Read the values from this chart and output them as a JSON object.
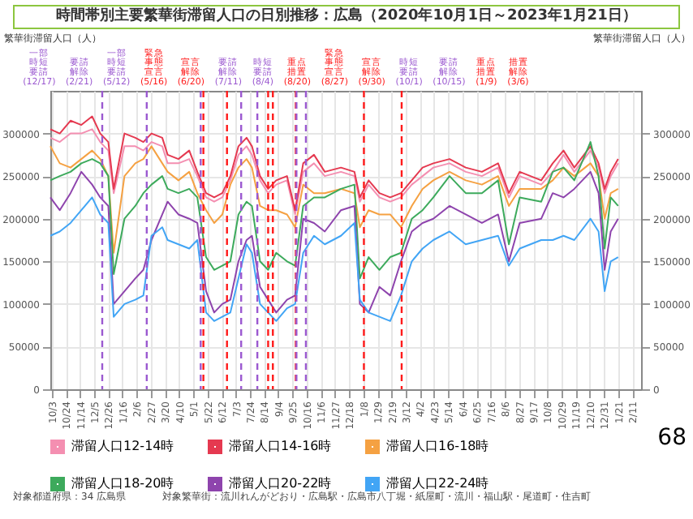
{
  "chart_data": {
    "type": "line",
    "title": "時間帯別主要繁華街滞留人口の日別推移：広島（2020年10月1日～2023年1月21日）",
    "ylabel": "繁華街滞留人口（人）",
    "y2label": "繁華街滞留人口（人）",
    "x": [
      "2020-10-01",
      "2020-10-15",
      "2020-10-31",
      "2020-11-16",
      "2020-12-02",
      "2020-12-14",
      "2020-12-26",
      "2021-01-03",
      "2021-01-19",
      "2021-02-04",
      "2021-02-16",
      "2021-02-28",
      "2021-03-16",
      "2021-03-24",
      "2021-04-09",
      "2021-04-25",
      "2021-05-07",
      "2021-05-20",
      "2021-06-01",
      "2021-06-13",
      "2021-06-25",
      "2021-07-07",
      "2021-07-19",
      "2021-07-27",
      "2021-08-08",
      "2021-08-20",
      "2021-09-01",
      "2021-09-17",
      "2021-09-29",
      "2021-10-11",
      "2021-10-27",
      "2021-11-12",
      "2021-12-06",
      "2021-12-26",
      "2022-01-03",
      "2022-01-16",
      "2022-02-01",
      "2022-02-17",
      "2022-03-05",
      "2022-03-21",
      "2022-04-06",
      "2022-04-22",
      "2022-05-16",
      "2022-06-09",
      "2022-07-03",
      "2022-07-27",
      "2022-08-12",
      "2022-08-28",
      "2022-09-29",
      "2022-10-16",
      "2022-11-01",
      "2022-11-17",
      "2022-12-11",
      "2022-12-23",
      "2023-01-01",
      "2023-01-10",
      "2023-01-21"
    ],
    "series": [
      {
        "name": "滞留人口12-14時",
        "color": "#f48fb1",
        "values": [
          295000,
          290000,
          300000,
          300000,
          305000,
          290000,
          280000,
          230000,
          285000,
          285000,
          280000,
          290000,
          285000,
          265000,
          265000,
          270000,
          250000,
          225000,
          220000,
          225000,
          245000,
          275000,
          285000,
          275000,
          245000,
          230000,
          240000,
          245000,
          205000,
          255000,
          265000,
          250000,
          255000,
          250000,
          220000,
          240000,
          225000,
          220000,
          225000,
          240000,
          250000,
          260000,
          265000,
          255000,
          250000,
          260000,
          225000,
          250000,
          240000,
          255000,
          275000,
          255000,
          280000,
          260000,
          230000,
          250000,
          265000
        ]
      },
      {
        "name": "滞留人口14-16時",
        "color": "#e53950",
        "values": [
          305000,
          300000,
          315000,
          310000,
          320000,
          300000,
          290000,
          235000,
          300000,
          295000,
          290000,
          300000,
          295000,
          275000,
          270000,
          280000,
          255000,
          230000,
          225000,
          230000,
          250000,
          285000,
          295000,
          285000,
          250000,
          235000,
          245000,
          250000,
          210000,
          265000,
          275000,
          255000,
          260000,
          255000,
          225000,
          245000,
          230000,
          225000,
          230000,
          245000,
          260000,
          265000,
          270000,
          260000,
          255000,
          265000,
          230000,
          255000,
          245000,
          265000,
          280000,
          260000,
          285000,
          265000,
          235000,
          255000,
          270000
        ]
      },
      {
        "name": "滞留人口16-18時",
        "color": "#f5a142",
        "values": [
          285000,
          265000,
          260000,
          270000,
          280000,
          270000,
          250000,
          160000,
          250000,
          265000,
          270000,
          285000,
          265000,
          255000,
          245000,
          255000,
          230000,
          210000,
          195000,
          205000,
          240000,
          260000,
          270000,
          260000,
          215000,
          210000,
          210000,
          205000,
          190000,
          240000,
          230000,
          230000,
          235000,
          230000,
          190000,
          210000,
          205000,
          205000,
          190000,
          215000,
          235000,
          245000,
          255000,
          245000,
          240000,
          250000,
          215000,
          235000,
          235000,
          245000,
          260000,
          250000,
          265000,
          250000,
          200000,
          230000,
          235000
        ]
      },
      {
        "name": "滞留人口18-20時",
        "color": "#3daa5c",
        "values": [
          245000,
          250000,
          255000,
          265000,
          270000,
          265000,
          250000,
          135000,
          200000,
          215000,
          230000,
          240000,
          250000,
          235000,
          230000,
          235000,
          225000,
          155000,
          140000,
          145000,
          150000,
          205000,
          220000,
          215000,
          150000,
          140000,
          160000,
          150000,
          145000,
          215000,
          225000,
          225000,
          235000,
          240000,
          130000,
          155000,
          140000,
          155000,
          160000,
          200000,
          210000,
          225000,
          250000,
          230000,
          230000,
          245000,
          170000,
          225000,
          220000,
          255000,
          260000,
          245000,
          290000,
          250000,
          165000,
          225000,
          215000
        ]
      },
      {
        "name": "滞留人口20-22時",
        "color": "#8e44ad",
        "values": [
          225000,
          210000,
          230000,
          255000,
          240000,
          225000,
          215000,
          100000,
          115000,
          130000,
          140000,
          175000,
          205000,
          220000,
          205000,
          200000,
          195000,
          115000,
          90000,
          100000,
          105000,
          150000,
          175000,
          180000,
          120000,
          105000,
          90000,
          105000,
          110000,
          200000,
          195000,
          185000,
          210000,
          215000,
          100000,
          90000,
          120000,
          110000,
          150000,
          185000,
          195000,
          200000,
          215000,
          205000,
          195000,
          205000,
          150000,
          195000,
          200000,
          230000,
          225000,
          235000,
          255000,
          230000,
          140000,
          185000,
          200000
        ]
      },
      {
        "name": "滞留人口22-24時",
        "color": "#42a5f5",
        "values": [
          180000,
          185000,
          195000,
          210000,
          225000,
          205000,
          195000,
          85000,
          100000,
          105000,
          110000,
          180000,
          190000,
          175000,
          170000,
          165000,
          175000,
          90000,
          80000,
          85000,
          90000,
          130000,
          170000,
          160000,
          100000,
          90000,
          80000,
          95000,
          100000,
          160000,
          180000,
          170000,
          180000,
          195000,
          105000,
          90000,
          85000,
          80000,
          110000,
          150000,
          165000,
          175000,
          185000,
          170000,
          175000,
          180000,
          145000,
          165000,
          175000,
          175000,
          180000,
          175000,
          200000,
          185000,
          115000,
          150000,
          155000
        ]
      }
    ],
    "xlim": [
      "2020-10-01",
      "2023-02-24"
    ],
    "xticks": [
      {
        "value": "2020-10-03",
        "label": "10/3"
      },
      {
        "value": "2020-10-24",
        "label": "10/24"
      },
      {
        "value": "2020-11-14",
        "label": "11/14"
      },
      {
        "value": "2020-12-05",
        "label": "12/5"
      },
      {
        "value": "2020-12-26",
        "label": "12/26"
      },
      {
        "value": "2021-01-16",
        "label": "1/16"
      },
      {
        "value": "2021-02-06",
        "label": "2/6"
      },
      {
        "value": "2021-02-27",
        "label": "2/27"
      },
      {
        "value": "2021-03-20",
        "label": "3/20"
      },
      {
        "value": "2021-04-10",
        "label": "4/10"
      },
      {
        "value": "2021-05-01",
        "label": "5/1"
      },
      {
        "value": "2021-05-22",
        "label": "5/22"
      },
      {
        "value": "2021-06-12",
        "label": "6/12"
      },
      {
        "value": "2021-07-03",
        "label": "7/3"
      },
      {
        "value": "2021-07-24",
        "label": "7/24"
      },
      {
        "value": "2021-08-14",
        "label": "8/14"
      },
      {
        "value": "2021-09-04",
        "label": "9/4"
      },
      {
        "value": "2021-09-25",
        "label": "9/25"
      },
      {
        "value": "2021-10-16",
        "label": "10/16"
      },
      {
        "value": "2021-11-06",
        "label": "11/6"
      },
      {
        "value": "2021-11-27",
        "label": "11/27"
      },
      {
        "value": "2021-12-18",
        "label": "12/18"
      },
      {
        "value": "2022-01-08",
        "label": "1/8"
      },
      {
        "value": "2022-01-29",
        "label": "1/29"
      },
      {
        "value": "2022-02-19",
        "label": "2/19"
      },
      {
        "value": "2022-03-12",
        "label": "3/12"
      },
      {
        "value": "2022-04-02",
        "label": "4/2"
      },
      {
        "value": "2022-04-23",
        "label": "4/23"
      },
      {
        "value": "2022-05-14",
        "label": "5/14"
      },
      {
        "value": "2022-06-04",
        "label": "6/4"
      },
      {
        "value": "2022-06-25",
        "label": "6/25"
      },
      {
        "value": "2022-07-16",
        "label": "7/16"
      },
      {
        "value": "2022-08-06",
        "label": "8/6"
      },
      {
        "value": "2022-08-27",
        "label": "8/27"
      },
      {
        "value": "2022-09-17",
        "label": "9/17"
      },
      {
        "value": "2022-10-08",
        "label": "10/8"
      },
      {
        "value": "2022-10-29",
        "label": "10/29"
      },
      {
        "value": "2022-11-19",
        "label": "11/19"
      },
      {
        "value": "2022-12-10",
        "label": "12/10"
      },
      {
        "value": "2022-12-31",
        "label": "12/31"
      },
      {
        "value": "2023-01-21",
        "label": "1/21"
      },
      {
        "value": "2023-02-11",
        "label": "2/11"
      }
    ],
    "ylim": [
      0,
      350000
    ],
    "yticks": [
      0,
      50000,
      100000,
      150000,
      200000,
      250000,
      300000
    ],
    "y2lim": [
      0,
      350000
    ],
    "y2ticks": [
      0,
      50000,
      100000,
      150000,
      200000,
      250000,
      300000
    ],
    "ref_lines": [
      {
        "axis": "x",
        "value": "2020-12-17",
        "label": "一部時短要請(12/17)",
        "color": "#9b59d0",
        "line_style": "dashed"
      },
      {
        "axis": "x",
        "value": "2021-02-21",
        "label": "要請解除(2/21)",
        "color": "#9b59d0",
        "line_style": "dashed"
      },
      {
        "axis": "x",
        "value": "2021-05-12",
        "label": "一部時短要請(5/12)",
        "color": "#9b59d0",
        "line_style": "dashed"
      },
      {
        "axis": "x",
        "value": "2021-05-16",
        "label": "緊急事態宣言(5/16)",
        "color": "#ff1a1a",
        "line_style": "dashed"
      },
      {
        "axis": "x",
        "value": "2021-06-20",
        "label": "宣言解除(6/20)",
        "color": "#ff1a1a",
        "line_style": "dashed"
      },
      {
        "axis": "x",
        "value": "2021-07-11",
        "label": "要請解除(7/11)",
        "color": "#9b59d0",
        "line_style": "dashed"
      },
      {
        "axis": "x",
        "value": "2021-08-04",
        "label": "時短要請(8/4)",
        "color": "#9b59d0",
        "line_style": "dashed"
      },
      {
        "axis": "x",
        "value": "2021-08-20",
        "label": "重点措置(8/20)",
        "color": "#ff1a1a",
        "line_style": "dashed"
      },
      {
        "axis": "x",
        "value": "2021-08-27",
        "label": "緊急事態宣言(8/27)",
        "color": "#ff1a1a",
        "line_style": "dashed"
      },
      {
        "axis": "x",
        "value": "2021-09-30",
        "label": "宣言解除(9/30)",
        "color": "#ff1a1a",
        "line_style": "dashed"
      },
      {
        "axis": "x",
        "value": "2021-10-01",
        "label": "時短要請(10/1)",
        "color": "#9b59d0",
        "line_style": "dashed"
      },
      {
        "axis": "x",
        "value": "2021-10-15",
        "label": "要請解除(10/15)",
        "color": "#9b59d0",
        "line_style": "dashed"
      },
      {
        "axis": "x",
        "value": "2022-01-09",
        "label": "重点措置(1/9)",
        "color": "#ff1a1a",
        "line_style": "dashed"
      },
      {
        "axis": "x",
        "value": "2022-03-06",
        "label": "措置解除(3/6)",
        "color": "#ff1a1a",
        "line_style": "dashed"
      }
    ],
    "annotations": [
      "対象都道府県：34 広島県",
      "対象繁華街：流川れんがどおり・広島駅・広島市八丁堀・紙屋町・流川・福山駅・尾道町・住吉町",
      "68"
    ],
    "grid": true,
    "legend": "bottom"
  }
}
